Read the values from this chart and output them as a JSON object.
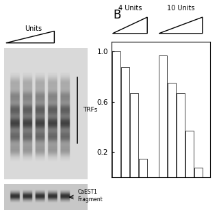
{
  "title_B": "B",
  "group1_label": "4 Units",
  "group2_label": "10 Units",
  "group1_bars": [
    1.0,
    0.88,
    0.67,
    0.15
  ],
  "group2_bars": [
    0.97,
    0.75,
    0.67,
    0.37,
    0.08
  ],
  "yticks": [
    0.2,
    0.6,
    1.0
  ],
  "ylim": [
    0,
    1.08
  ],
  "bar_color": "white",
  "bar_edgecolor": "#444444",
  "fig_bg": "white",
  "trf_label": "TRFs",
  "units_label": "Units",
  "caest1_label": "CaEST1\nFragment"
}
